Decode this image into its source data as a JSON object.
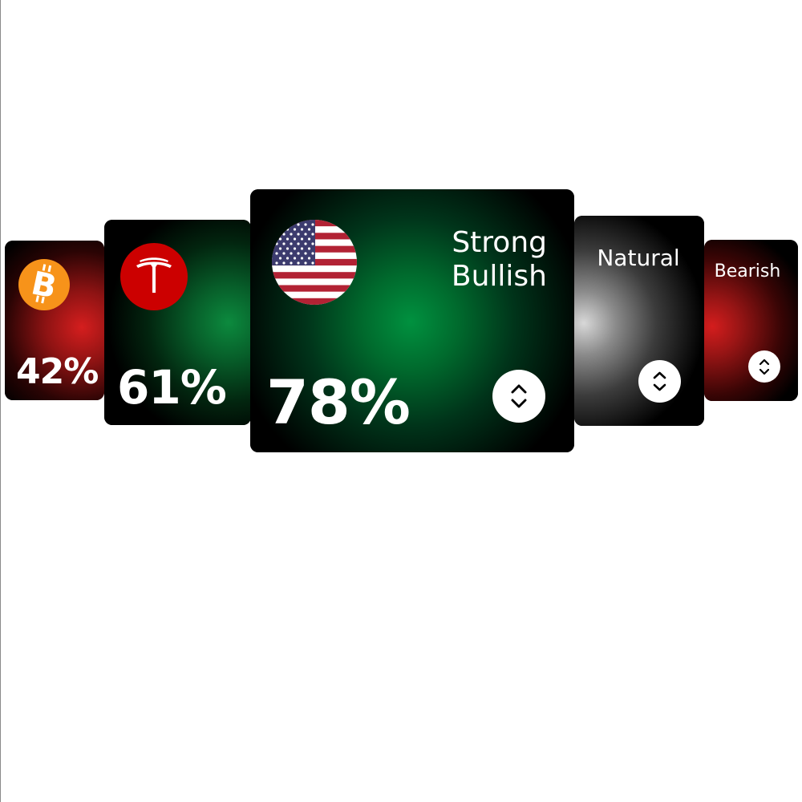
{
  "carousel": {
    "cards": [
      {
        "logo": "bitcoin-icon",
        "percent": "42%",
        "sentiment": "",
        "accent": "#d51e1e"
      },
      {
        "logo": "tesla-icon",
        "percent": "61%",
        "sentiment": "",
        "accent": "#0c8a3e"
      },
      {
        "logo": "us-flag-icon",
        "percent": "78%",
        "sentiment_line1": "Strong",
        "sentiment_line2": "Bullish",
        "accent": "#00913f",
        "stepper_icon": "chevron-up-down-icon"
      },
      {
        "logo": "",
        "percent": "",
        "sentiment": "Natural",
        "accent": "#d8d8d8",
        "stepper_icon": "chevron-up-down-icon"
      },
      {
        "logo": "",
        "percent": "",
        "sentiment": "Bearish",
        "accent": "#d41d1d",
        "stepper_icon": "chevron-up-down-icon"
      }
    ]
  },
  "colors": {
    "bitcoin": "#f7931a",
    "tesla": "#cc0000",
    "card_bg": "#000000"
  }
}
